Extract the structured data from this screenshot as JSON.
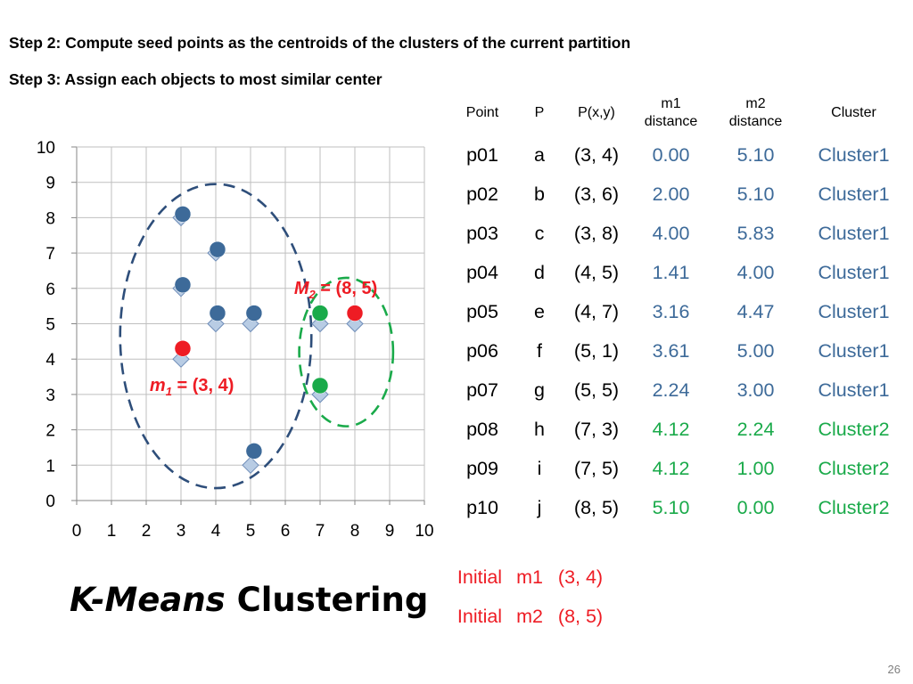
{
  "steps": {
    "step2": "Step 2: Compute seed points as the centroids of the clusters of the current partition",
    "step3": "Step 3: Assign each objects to most similar center"
  },
  "chart_data": {
    "type": "scatter",
    "xlim": [
      0,
      10
    ],
    "ylim": [
      0,
      10
    ],
    "x_ticks": [
      "0",
      "1",
      "2",
      "3",
      "4",
      "5",
      "6",
      "7",
      "8",
      "9",
      "10"
    ],
    "y_ticks": [
      "0",
      "1",
      "2",
      "3",
      "4",
      "5",
      "6",
      "7",
      "8",
      "9",
      "10"
    ],
    "grid": true,
    "series": [
      {
        "marker": "diamond",
        "color": "#b8cce4",
        "points": [
          [
            3,
            4
          ],
          [
            3,
            6
          ],
          [
            3,
            8
          ],
          [
            4,
            5
          ],
          [
            4,
            7
          ],
          [
            5,
            1
          ],
          [
            5,
            5
          ],
          [
            7,
            3
          ],
          [
            7,
            5
          ],
          [
            8,
            5
          ]
        ]
      },
      {
        "marker": "circle",
        "color": "#3d6a99",
        "points": [
          [
            3.05,
            6.1
          ],
          [
            3.05,
            8.1
          ],
          [
            4.05,
            5.3
          ],
          [
            4.05,
            7.1
          ],
          [
            5.1,
            1.4
          ],
          [
            5.1,
            5.3
          ]
        ]
      },
      {
        "marker": "circle",
        "color": "#1aaa4a",
        "points": [
          [
            7.0,
            3.25
          ],
          [
            7.0,
            5.3
          ]
        ]
      },
      {
        "marker": "circle",
        "color": "#ee1c24",
        "points": [
          [
            3.05,
            4.3
          ],
          [
            8.0,
            5.3
          ]
        ]
      }
    ],
    "annotations": [
      {
        "label": "m",
        "sub": "1",
        "text": " = (3, 4)",
        "color": "#ee1c24"
      },
      {
        "label": "M",
        "sub": "2",
        "text": " = (8, 5)",
        "color": "#ee1c24"
      }
    ],
    "cluster_regions": [
      {
        "color": "#2e4e7a",
        "center": [
          4.0,
          4.65
        ],
        "radius": [
          2.75,
          4.3
        ]
      },
      {
        "color": "#1aaa4a",
        "center": [
          7.75,
          4.2
        ],
        "radius": [
          1.35,
          2.1
        ]
      }
    ]
  },
  "table": {
    "headers": {
      "point": "Point",
      "p": "P",
      "pxy": "P(x,y)",
      "m1_line1": "m1",
      "m1_line2": "distance",
      "m2_line1": "m2",
      "m2_line2": "distance",
      "cluster": "Cluster"
    },
    "rows": [
      {
        "point": "p01",
        "p": "a",
        "xy": "(3, 4)",
        "m1": "0.00",
        "m2": "5.10",
        "cluster": "Cluster1",
        "color": "blue"
      },
      {
        "point": "p02",
        "p": "b",
        "xy": "(3, 6)",
        "m1": "2.00",
        "m2": "5.10",
        "cluster": "Cluster1",
        "color": "blue"
      },
      {
        "point": "p03",
        "p": "c",
        "xy": "(3, 8)",
        "m1": "4.00",
        "m2": "5.83",
        "cluster": "Cluster1",
        "color": "blue"
      },
      {
        "point": "p04",
        "p": "d",
        "xy": "(4, 5)",
        "m1": "1.41",
        "m2": "4.00",
        "cluster": "Cluster1",
        "color": "blue"
      },
      {
        "point": "p05",
        "p": "e",
        "xy": "(4, 7)",
        "m1": "3.16",
        "m2": "4.47",
        "cluster": "Cluster1",
        "color": "blue"
      },
      {
        "point": "p06",
        "p": "f",
        "xy": "(5, 1)",
        "m1": "3.61",
        "m2": "5.00",
        "cluster": "Cluster1",
        "color": "blue"
      },
      {
        "point": "p07",
        "p": "g",
        "xy": "(5, 5)",
        "m1": "2.24",
        "m2": "3.00",
        "cluster": "Cluster1",
        "color": "blue"
      },
      {
        "point": "p08",
        "p": "h",
        "xy": "(7, 3)",
        "m1": "4.12",
        "m2": "2.24",
        "cluster": "Cluster2",
        "color": "green"
      },
      {
        "point": "p09",
        "p": "i",
        "xy": "(7, 5)",
        "m1": "4.12",
        "m2": "1.00",
        "cluster": "Cluster2",
        "color": "green"
      },
      {
        "point": "p10",
        "p": "j",
        "xy": "(8, 5)",
        "m1": "5.10",
        "m2": "0.00",
        "cluster": "Cluster2",
        "color": "green"
      }
    ]
  },
  "initial": [
    {
      "label": "Initial",
      "m": "m1",
      "value": "(3, 4)"
    },
    {
      "label": "Initial",
      "m": "m2",
      "value": "(8, 5)"
    }
  ],
  "title": {
    "italic": "K-Means",
    "rest": " Clustering"
  },
  "page_number": "26"
}
